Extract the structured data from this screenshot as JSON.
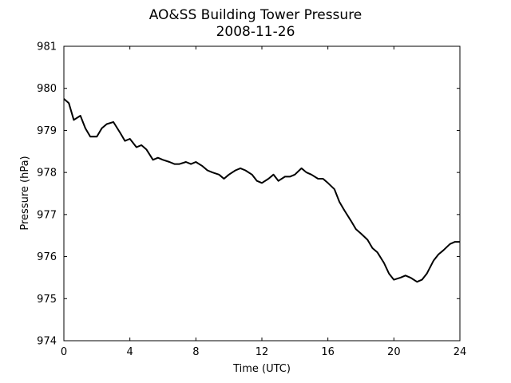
{
  "chart_data": {
    "type": "line",
    "title": "AO&SS Building Tower Pressure",
    "subtitle": "2008-11-26",
    "xlabel": "Time (UTC)",
    "ylabel": "Pressure (hPa)",
    "xlim": [
      0,
      24
    ],
    "ylim": [
      974,
      981
    ],
    "xticks": [
      0,
      4,
      8,
      12,
      16,
      20,
      24
    ],
    "yticks": [
      974,
      975,
      976,
      977,
      978,
      979,
      980,
      981
    ],
    "grid": false,
    "line_color": "#000000",
    "series": [
      {
        "x": [
          0,
          0.3,
          0.6,
          1.0,
          1.3,
          1.6,
          2.0,
          2.3,
          2.6,
          3.0,
          3.4,
          3.7,
          4.0,
          4.4,
          4.7,
          5.0,
          5.4,
          5.7,
          6.0,
          6.4,
          6.7,
          7.0,
          7.4,
          7.7,
          8.0,
          8.4,
          8.7,
          9.0,
          9.4,
          9.7,
          10.0,
          10.4,
          10.7,
          11.0,
          11.4,
          11.7,
          12.0,
          12.4,
          12.7,
          13.0,
          13.4,
          13.7,
          14.0,
          14.4,
          14.7,
          15.0,
          15.4,
          15.7,
          16.0,
          16.4,
          16.7,
          17.0,
          17.4,
          17.7,
          18.0,
          18.4,
          18.7,
          19.0,
          19.4,
          19.7,
          20.0,
          20.4,
          20.7,
          21.0,
          21.4,
          21.7,
          22.0,
          22.4,
          22.7,
          23.0,
          23.4,
          23.7,
          24.0
        ],
        "y": [
          979.75,
          979.65,
          979.25,
          979.35,
          979.05,
          978.85,
          978.85,
          979.05,
          979.15,
          979.2,
          978.95,
          978.75,
          978.8,
          978.6,
          978.65,
          978.55,
          978.3,
          978.35,
          978.3,
          978.25,
          978.2,
          978.2,
          978.25,
          978.2,
          978.25,
          978.15,
          978.05,
          978.0,
          977.95,
          977.85,
          977.95,
          978.05,
          978.1,
          978.05,
          977.95,
          977.8,
          977.75,
          977.85,
          977.95,
          977.8,
          977.9,
          977.9,
          977.95,
          978.1,
          978.0,
          977.95,
          977.85,
          977.85,
          977.75,
          977.6,
          977.3,
          977.1,
          976.85,
          976.65,
          976.55,
          976.4,
          976.2,
          976.1,
          975.85,
          975.6,
          975.45,
          975.5,
          975.55,
          975.5,
          975.4,
          975.45,
          975.6,
          975.9,
          976.05,
          976.15,
          976.3,
          976.35,
          976.35
        ]
      }
    ]
  }
}
